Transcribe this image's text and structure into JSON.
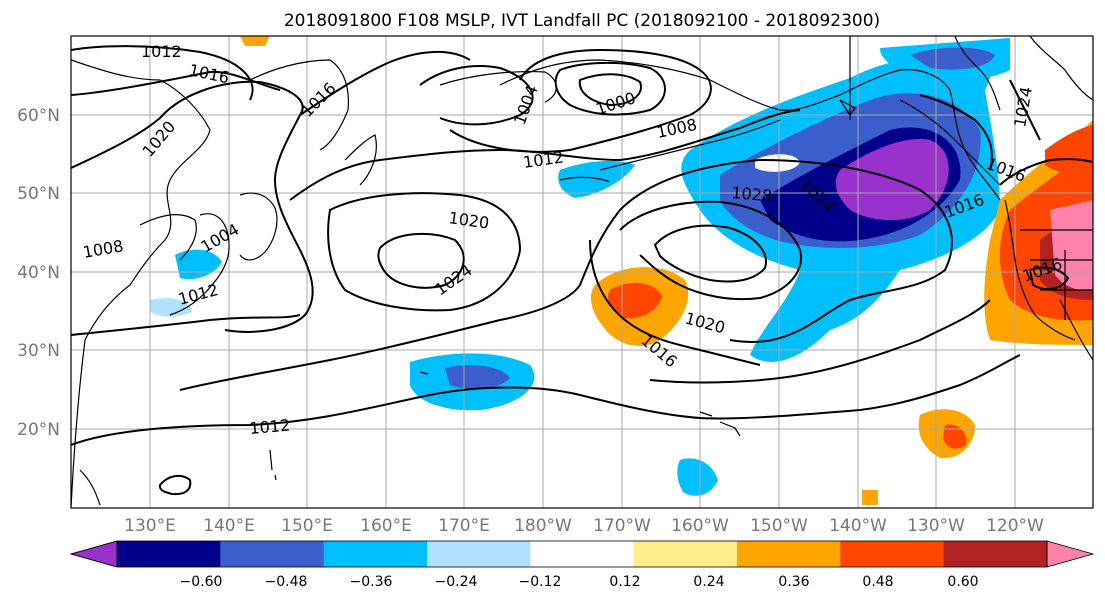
{
  "title": "2018091800 F108 MSLP, IVT Landfall PC (2018092100 - 2018092300)",
  "lat_labels": [
    "60°N",
    "50°N",
    "40°N",
    "30°N",
    "20°N"
  ],
  "lon_labels": [
    "130°E",
    "140°E",
    "150°E",
    "160°E",
    "170°E",
    "180°W",
    "170°W",
    "160°W",
    "150°W",
    "140°W",
    "130°W",
    "120°W"
  ],
  "contour_labels": [
    "1012",
    "1016",
    "1016",
    "1020",
    "1004",
    "1000",
    "1008",
    "1012",
    "1028",
    "1024",
    "1016",
    "1024",
    "1016",
    "1020",
    "1024",
    "1008",
    "1004",
    "1012",
    "1020",
    "1016",
    "1016",
    "1012"
  ],
  "colorbar": {
    "ticks": [
      "−0.60",
      "−0.48",
      "−0.36",
      "−0.24",
      "−0.12",
      "0.12",
      "0.24",
      "0.36",
      "0.48",
      "0.60"
    ],
    "colors": [
      "#9932cc",
      "#00008b",
      "#3a5fcd",
      "#00bfff",
      "#b0e2ff",
      "#ffffff",
      "#ffec8b",
      "#ffa500",
      "#ff4500",
      "#b22222",
      "#ff82ab"
    ]
  }
}
